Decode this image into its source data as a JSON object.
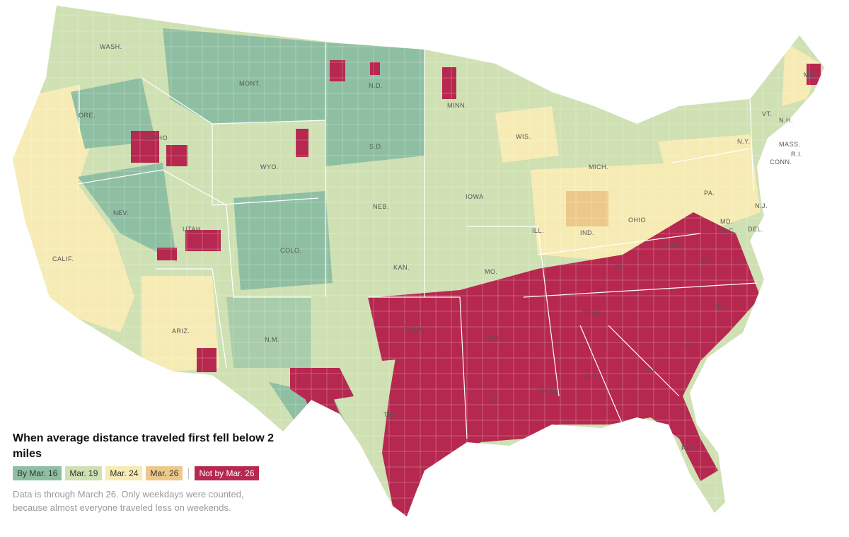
{
  "colors": {
    "by_mar16": "#8fbfa3",
    "mar19": "#cfe0b3",
    "mar24": "#f6ebb4",
    "mar26": "#ecc98a",
    "not_by_mar26": "#b6284f",
    "background": "#ffffff",
    "state_border": "#ffffff"
  },
  "legend": {
    "title": "When average distance traveled first fell below 2 miles",
    "items": [
      {
        "label": "By Mar. 16",
        "color": "#8fbfa3"
      },
      {
        "label": "Mar. 19",
        "color": "#cfe0b3"
      },
      {
        "label": "Mar. 24",
        "color": "#f6ebb4"
      },
      {
        "label": "Mar. 26",
        "color": "#ecc98a"
      },
      {
        "label": "Not by Mar. 26",
        "color": "#b6284f"
      }
    ]
  },
  "note": "Data is through March 26. Only weekdays were counted, because almost everyone traveled less on weekends.",
  "state_labels": [
    "WASH.",
    "ORE.",
    "CALIF.",
    "IDAHO",
    "NEV.",
    "MONT.",
    "WYO.",
    "UTAH",
    "ARIZ.",
    "COLO.",
    "N.M.",
    "N.D.",
    "S.D.",
    "NEB.",
    "KAN.",
    "OKLA.",
    "TEX.",
    "MINN.",
    "IOWA",
    "MO.",
    "ARK.",
    "LA.",
    "WIS.",
    "ILL.",
    "MISS.",
    "MICH.",
    "IND.",
    "KY.",
    "TENN.",
    "ALA.",
    "OHIO",
    "GA.",
    "FLA.",
    "S.C.",
    "N.C.",
    "VA.",
    "W.VA.",
    "PA.",
    "N.Y.",
    "MD.",
    "D.C.",
    "DEL.",
    "N.J.",
    "CONN.",
    "R.I.",
    "MASS.",
    "VT.",
    "N.H.",
    "ME."
  ]
}
